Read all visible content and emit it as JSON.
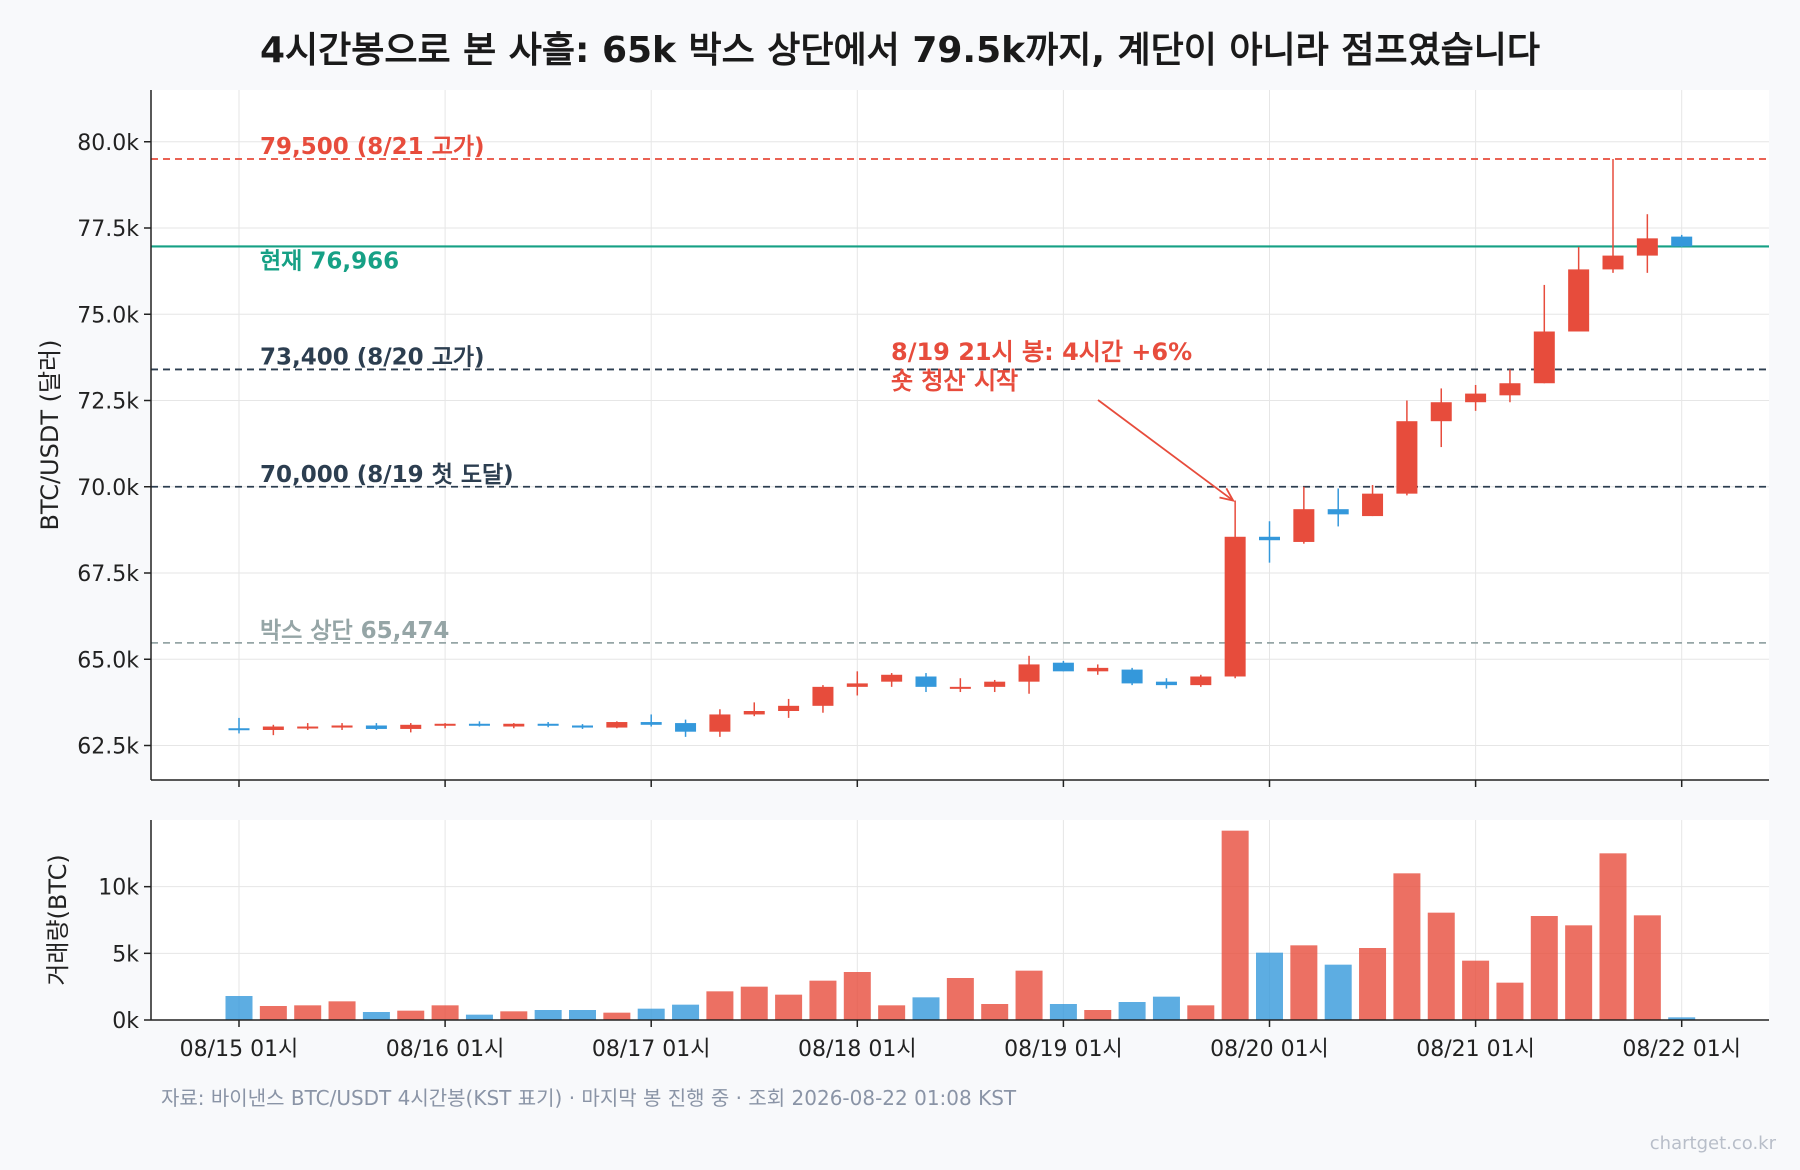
{
  "title": "4시간봉으로 본 사흘: 65k 박스 상단에서 79.5k까지, 계단이 아니라 점프였습니다",
  "footer": "자료: 바이낸스 BTC/USDT 4시간봉(KST 표기) · 마지막 봉 진행 중 · 조회 2026-08-22 01:08 KST",
  "brand": "chartget.co.kr",
  "colors": {
    "up": "#e74c3c",
    "down": "#3498db",
    "current": "#16a085",
    "level": "#2c3e50",
    "box": "#95a5a6"
  },
  "chart_data": [
    {
      "type": "candlestick",
      "ylabel": "BTC/USDT (달러)",
      "ylim": [
        61500,
        81500
      ],
      "y_ticks": [
        62500,
        65000,
        67500,
        70000,
        72500,
        75000,
        77500,
        80000
      ],
      "y_tick_labels": [
        "62.5k",
        "65.0k",
        "67.5k",
        "70.0k",
        "72.5k",
        "75.0k",
        "77.5k",
        "80.0k"
      ],
      "x_tick_labels": [
        "08/15 01시",
        "08/16 01시",
        "08/17 01시",
        "08/18 01시",
        "08/19 01시",
        "08/20 01시",
        "08/21 01시",
        "08/22 01시"
      ],
      "grid": true,
      "reference_lines": [
        {
          "value": 79500,
          "label": "79,500 (8/21 고가)",
          "style": "dashed",
          "color": "#e74c3c"
        },
        {
          "value": 76966,
          "label": "현재 76,966",
          "style": "solid",
          "color": "#16a085"
        },
        {
          "value": 73400,
          "label": "73,400 (8/20 고가)",
          "style": "dashed",
          "color": "#2c3e50"
        },
        {
          "value": 70000,
          "label": "70,000 (8/19 첫 도달)",
          "style": "dashed",
          "color": "#2c3e50"
        },
        {
          "value": 65474,
          "label": "박스 상단 65,474",
          "style": "dashed",
          "color": "#95a5a6"
        }
      ],
      "annotation": {
        "text": [
          "8/19 21시 봉: 4시간 +6%",
          "숏 청산 시작"
        ],
        "points_to_candle": 29
      },
      "candles": [
        {
          "o": 63000,
          "h": 63300,
          "l": 62850,
          "c": 62980
        },
        {
          "o": 62950,
          "h": 63100,
          "l": 62800,
          "c": 63050
        },
        {
          "o": 63000,
          "h": 63150,
          "l": 62950,
          "c": 63050
        },
        {
          "o": 63020,
          "h": 63150,
          "l": 62950,
          "c": 63080
        },
        {
          "o": 63080,
          "h": 63150,
          "l": 62950,
          "c": 62980
        },
        {
          "o": 62980,
          "h": 63150,
          "l": 62880,
          "c": 63100
        },
        {
          "o": 63080,
          "h": 63150,
          "l": 63000,
          "c": 63130
        },
        {
          "o": 63130,
          "h": 63200,
          "l": 63050,
          "c": 63100
        },
        {
          "o": 63050,
          "h": 63150,
          "l": 63000,
          "c": 63130
        },
        {
          "o": 63130,
          "h": 63180,
          "l": 63030,
          "c": 63080
        },
        {
          "o": 63080,
          "h": 63120,
          "l": 62980,
          "c": 63020
        },
        {
          "o": 63020,
          "h": 63200,
          "l": 63000,
          "c": 63180
        },
        {
          "o": 63180,
          "h": 63400,
          "l": 63050,
          "c": 63100
        },
        {
          "o": 63150,
          "h": 63250,
          "l": 62750,
          "c": 62900
        },
        {
          "o": 62900,
          "h": 63550,
          "l": 62750,
          "c": 63400
        },
        {
          "o": 63400,
          "h": 63750,
          "l": 63350,
          "c": 63500
        },
        {
          "o": 63500,
          "h": 63850,
          "l": 63300,
          "c": 63650
        },
        {
          "o": 63650,
          "h": 64250,
          "l": 63450,
          "c": 64200
        },
        {
          "o": 64200,
          "h": 64650,
          "l": 63950,
          "c": 64300
        },
        {
          "o": 64350,
          "h": 64600,
          "l": 64200,
          "c": 64550
        },
        {
          "o": 64500,
          "h": 64600,
          "l": 64050,
          "c": 64200
        },
        {
          "o": 64150,
          "h": 64450,
          "l": 64050,
          "c": 64200
        },
        {
          "o": 64200,
          "h": 64400,
          "l": 64050,
          "c": 64350
        },
        {
          "o": 64350,
          "h": 65100,
          "l": 64000,
          "c": 64850
        },
        {
          "o": 64900,
          "h": 64950,
          "l": 64650,
          "c": 64650
        },
        {
          "o": 64650,
          "h": 64850,
          "l": 64550,
          "c": 64750
        },
        {
          "o": 64700,
          "h": 64750,
          "l": 64250,
          "c": 64300
        },
        {
          "o": 64350,
          "h": 64450,
          "l": 64150,
          "c": 64250
        },
        {
          "o": 64250,
          "h": 64550,
          "l": 64200,
          "c": 64500
        },
        {
          "o": 64500,
          "h": 69600,
          "l": 64450,
          "c": 68550
        },
        {
          "o": 68550,
          "h": 69000,
          "l": 67800,
          "c": 68450
        },
        {
          "o": 68400,
          "h": 70000,
          "l": 68350,
          "c": 69350
        },
        {
          "o": 69350,
          "h": 69950,
          "l": 68850,
          "c": 69200
        },
        {
          "o": 69150,
          "h": 70050,
          "l": 69150,
          "c": 69800
        },
        {
          "o": 69800,
          "h": 72500,
          "l": 69750,
          "c": 71900
        },
        {
          "o": 71900,
          "h": 72850,
          "l": 71150,
          "c": 72450
        },
        {
          "o": 72450,
          "h": 72950,
          "l": 72200,
          "c": 72700
        },
        {
          "o": 72650,
          "h": 73400,
          "l": 72450,
          "c": 73000
        },
        {
          "o": 73000,
          "h": 75850,
          "l": 73000,
          "c": 74500
        },
        {
          "o": 74500,
          "h": 76950,
          "l": 74500,
          "c": 76300
        },
        {
          "o": 76300,
          "h": 79500,
          "l": 76200,
          "c": 76700
        },
        {
          "o": 76700,
          "h": 77900,
          "l": 76200,
          "c": 77200
        },
        {
          "o": 77250,
          "h": 77300,
          "l": 76950,
          "c": 76966
        }
      ]
    },
    {
      "type": "bar",
      "ylabel": "거래량(BTC)",
      "ylim": [
        0,
        15000
      ],
      "y_ticks": [
        0,
        5000,
        10000
      ],
      "y_tick_labels": [
        "0k",
        "5k",
        "10k"
      ],
      "grid": true,
      "values": [
        1800,
        1050,
        1100,
        1400,
        600,
        700,
        1100,
        400,
        650,
        750,
        750,
        550,
        850,
        1150,
        2150,
        2500,
        1900,
        2950,
        3600,
        1100,
        1700,
        3150,
        1200,
        3700,
        1200,
        750,
        1350,
        1750,
        1100,
        14200,
        5050,
        5600,
        4150,
        5400,
        11000,
        8050,
        4450,
        2800,
        7800,
        7100,
        12500,
        7850,
        200
      ]
    }
  ]
}
